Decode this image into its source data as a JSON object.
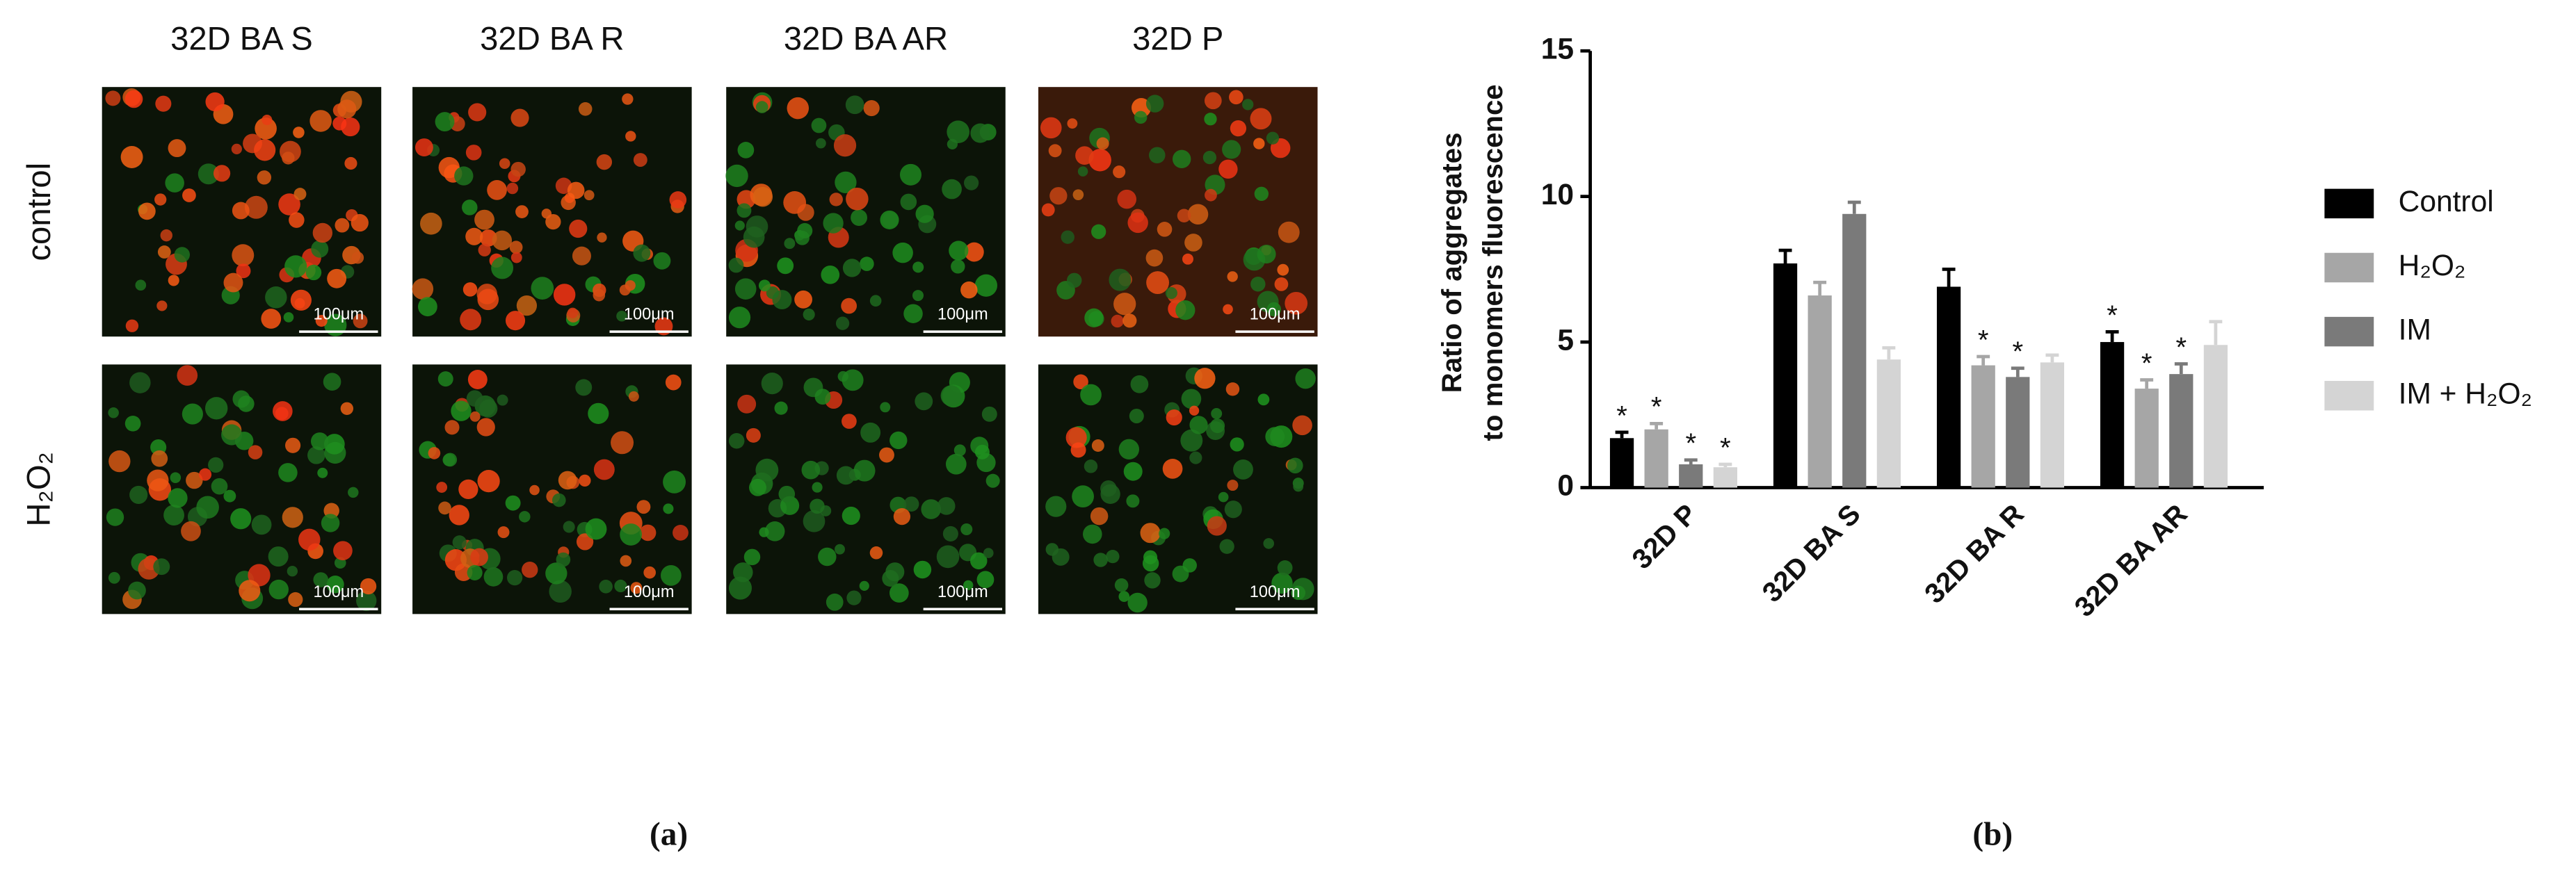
{
  "panel_a": {
    "columns": [
      "32D BA S",
      "32D BA R",
      "32D BA AR",
      "32D P"
    ],
    "rows": [
      "control",
      "H₂O₂"
    ],
    "scale_bars": [
      [
        "100μm",
        "100μm",
        "100μm",
        "100μm"
      ],
      [
        "100μm",
        "100μm",
        "100μm",
        "100μm"
      ]
    ],
    "caption": "(a)"
  },
  "panel_b_caption": "(b)",
  "chart_data": {
    "type": "bar",
    "y_label": [
      "Ratio of aggregates",
      "to monomers fluorescence"
    ],
    "categories": [
      "32D P",
      "32D BA S",
      "32D BA R",
      "32D BA AR"
    ],
    "series": [
      {
        "name": "Control",
        "color": "#000000",
        "values": [
          1.7,
          7.7,
          6.9,
          5.0
        ],
        "errors": [
          0.2,
          0.45,
          0.6,
          0.35
        ],
        "significance": [
          "*",
          null,
          null,
          "*"
        ]
      },
      {
        "name": "H₂O₂",
        "color": "#a6a6a6",
        "values": [
          2.0,
          6.6,
          4.2,
          3.4
        ],
        "errors": [
          0.2,
          0.45,
          0.3,
          0.3
        ],
        "significance": [
          "*",
          null,
          "*",
          "*"
        ]
      },
      {
        "name": "IM",
        "color": "#7a7a7a",
        "values": [
          0.8,
          9.4,
          3.8,
          3.9
        ],
        "errors": [
          0.15,
          0.4,
          0.3,
          0.35
        ],
        "significance": [
          "*",
          null,
          "*",
          "*"
        ]
      },
      {
        "name": "IM + H₂O₂",
        "color": "#d4d4d4",
        "values": [
          0.7,
          4.4,
          4.3,
          4.9
        ],
        "errors": [
          0.1,
          0.4,
          0.25,
          0.8
        ],
        "significance": [
          "*",
          null,
          null,
          null
        ]
      }
    ],
    "ylim": [
      0,
      15
    ],
    "yticks": [
      0,
      5,
      10,
      15
    ],
    "legend": "right"
  }
}
